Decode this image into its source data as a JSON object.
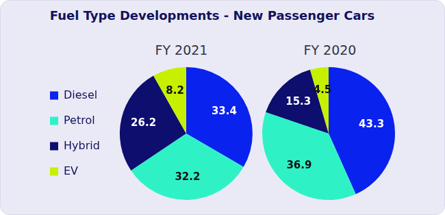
{
  "title": "Fuel Type Developments - New Passenger Cars",
  "chart_data": [
    {
      "type": "pie",
      "title": "FY 2021",
      "categories": [
        "Diesel",
        "Petrol",
        "Hybrid",
        "EV"
      ],
      "values": [
        33.4,
        32.2,
        26.2,
        8.2
      ],
      "colors": [
        "#0a22ee",
        "#2ef2c6",
        "#0e0e6e",
        "#c6f000"
      ],
      "data_labels": true,
      "legend": "left"
    },
    {
      "type": "pie",
      "title": "FY 2020",
      "categories": [
        "Diesel",
        "Petrol",
        "Hybrid",
        "EV"
      ],
      "values": [
        43.3,
        36.9,
        15.3,
        4.5
      ],
      "colors": [
        "#0a22ee",
        "#2ef2c6",
        "#0e0e6e",
        "#c6f000"
      ],
      "data_labels": true
    }
  ]
}
